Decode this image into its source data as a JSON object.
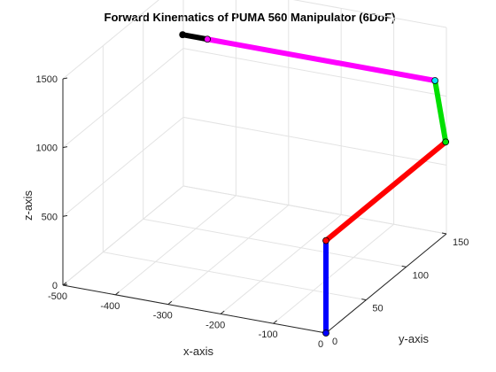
{
  "chart_data": {
    "type": "line",
    "title": "Forward Kinematics of PUMA 560 Manipulator (6DoF)",
    "xlabel": "x-axis",
    "ylabel": "y-axis",
    "zlabel": "z-axis",
    "xlim": [
      -500,
      0
    ],
    "ylim": [
      0,
      150
    ],
    "zlim": [
      0,
      1500
    ],
    "xticks": [
      -500,
      -400,
      -300,
      -200,
      -100,
      0
    ],
    "yticks": [
      0,
      50,
      100,
      150
    ],
    "zticks": [
      0,
      500,
      1000,
      1500
    ],
    "grid": true,
    "series": [
      {
        "color": "#0000ff",
        "points": [
          [
            0,
            0,
            0
          ],
          [
            0,
            0,
            672
          ]
        ]
      },
      {
        "color": "#ff0000",
        "points": [
          [
            0,
            0,
            672
          ],
          [
            0,
            149.1,
            672
          ]
        ]
      },
      {
        "color": "#00e000",
        "points": [
          [
            0,
            149.1,
            672
          ],
          [
            -20.3,
            149.1,
            1104
          ]
        ]
      },
      {
        "color": "#ff00ff",
        "points": [
          [
            -20.3,
            149.1,
            1104
          ],
          [
            -453,
            149.1,
            1104
          ]
        ]
      },
      {
        "color": "#000000",
        "points": [
          [
            -453,
            149.1,
            1104
          ],
          [
            -500,
            149.1,
            1104
          ]
        ]
      }
    ],
    "joints": [
      {
        "color": "#ff0000",
        "point": [
          0,
          0,
          672
        ]
      },
      {
        "color": "#00e000",
        "point": [
          0,
          149.1,
          672
        ]
      },
      {
        "color": "#00e5ff",
        "point": [
          -20.3,
          149.1,
          1104
        ]
      },
      {
        "color": "#ff00ff",
        "point": [
          -453,
          149.1,
          1104
        ]
      },
      {
        "color": "#000000",
        "point": [
          -500,
          149.1,
          1104
        ]
      }
    ]
  }
}
